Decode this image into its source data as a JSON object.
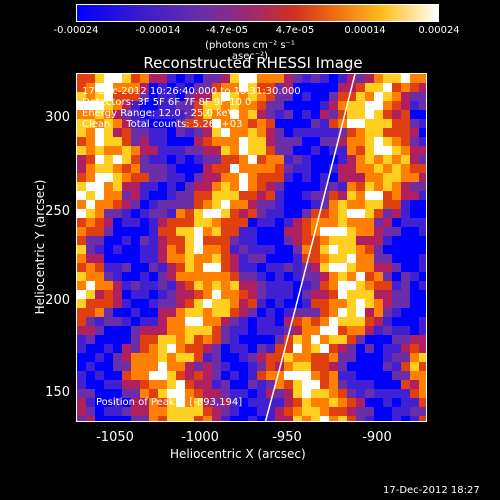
{
  "colorbar": {
    "ticks": [
      "-0.00024",
      "-0.00014",
      "-4.7e-05",
      "4.7e-05",
      "0.00014",
      "0.00024"
    ],
    "units": "(photons cm⁻² s⁻¹ asec⁻²)",
    "colors": [
      "#0000ff",
      "#4020d0",
      "#6a2ea8",
      "#b02060",
      "#e04010",
      "#ff8000",
      "#ffd020",
      "#ffffff"
    ]
  },
  "title": "Reconstructed RHESSI Image",
  "info": {
    "time": "17-Dec-2012 10:26:40.000 to 10:31:30.000",
    "detectors": "Detectors: 3F 5F 6F 7F 8F 9F 10 0",
    "energy": "Energy Range: 12.0 - 25.0 keV",
    "clean": "Clean     Total counts: 5.26E+03"
  },
  "peak": "Position of Peak = [-893,194]",
  "axes": {
    "xlabel": "Heliocentric X (arcsec)",
    "ylabel": "Heliocentric Y (arcsec)",
    "xticks": [
      "-1050",
      "-1000",
      "-950",
      "-900"
    ],
    "yticks": [
      "300",
      "250",
      "200",
      "150"
    ]
  },
  "footer": "17-Dec-2012 18:27"
}
